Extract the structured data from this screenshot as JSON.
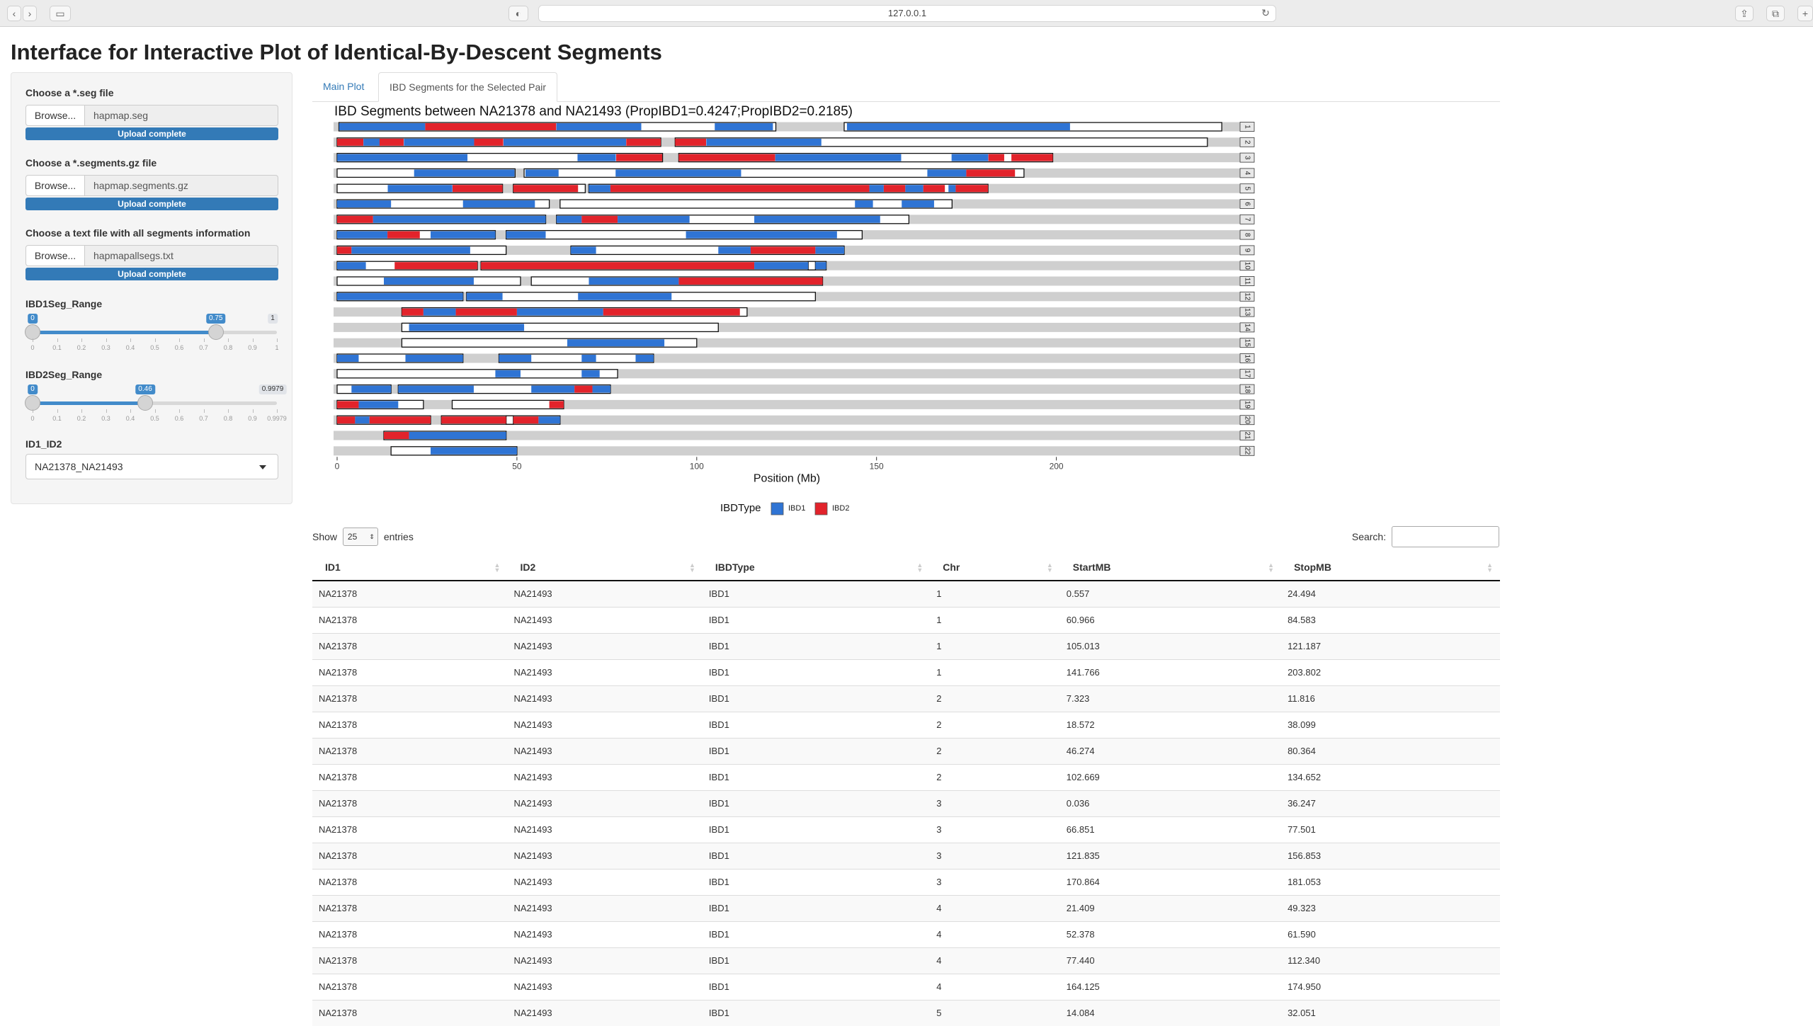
{
  "browser": {
    "url": "127.0.0.1"
  },
  "title": "Interface for Interactive Plot of Identical-By-Descent Segments",
  "sidebar": {
    "file1": {
      "label": "Choose a *.seg file",
      "button": "Browse...",
      "filename": "hapmap.seg",
      "status": "Upload complete"
    },
    "file2": {
      "label": "Choose a *.segments.gz file",
      "button": "Browse...",
      "filename": "hapmap.segments.gz",
      "status": "Upload complete"
    },
    "file3": {
      "label": "Choose a text file with all segments information",
      "button": "Browse...",
      "filename": "hapmapallsegs.txt",
      "status": "Upload complete"
    },
    "slider1": {
      "label": "IBD1Seg_Range",
      "min": 0,
      "max": 1,
      "from": 0,
      "to": 0.75,
      "from_label": "0",
      "to_label": "0.75",
      "max_label": "1",
      "ticks": [
        "0",
        "0.1",
        "0.2",
        "0.3",
        "0.4",
        "0.5",
        "0.6",
        "0.7",
        "0.8",
        "0.9",
        "1"
      ]
    },
    "slider2": {
      "label": "IBD2Seg_Range",
      "min": 0,
      "max": 0.9979,
      "from": 0,
      "to": 0.46,
      "from_label": "0",
      "to_label": "0.46",
      "max_label": "0.9979",
      "ticks": [
        "0",
        "0.1",
        "0.2",
        "0.3",
        "0.4",
        "0.5",
        "0.6",
        "0.7",
        "0.8",
        "0.9",
        "0.9979"
      ]
    },
    "select": {
      "label": "ID1_ID2",
      "value": "NA21378_NA21493"
    }
  },
  "tabs": [
    "Main Plot",
    "IBD Segments for the Selected Pair"
  ],
  "chart_data": {
    "type": "bar",
    "title": "IBD Segments between NA21378 and NA21493 (PropIBD1=0.4247;PropIBD2=0.2185)",
    "xlabel": "Position (Mb)",
    "xlim": [
      0,
      250
    ],
    "xticks": [
      0,
      50,
      100,
      150,
      200
    ],
    "legend": {
      "title": "IBDType",
      "position": "bottom",
      "items": [
        {
          "name": "IBD1",
          "color": "#2f74d4"
        },
        {
          "name": "IBD2",
          "color": "#e2232b"
        }
      ]
    },
    "chromosomes": [
      {
        "chr": "1",
        "length": 246,
        "segments": [
          [
            0.5,
            122,
            "w"
          ],
          [
            0.557,
            24.494,
            "IBD1"
          ],
          [
            24.5,
            60.9,
            "IBD2"
          ],
          [
            60.966,
            84.583,
            "IBD1"
          ],
          [
            105.013,
            121.187,
            "IBD1"
          ],
          [
            141,
            246,
            "w"
          ],
          [
            141.766,
            203.802,
            "IBD1"
          ]
        ]
      },
      {
        "chr": "2",
        "length": 242,
        "segments": [
          [
            0,
            90,
            "w"
          ],
          [
            0,
            7.3,
            "IBD2"
          ],
          [
            7.323,
            11.816,
            "IBD1"
          ],
          [
            11.8,
            18.5,
            "IBD2"
          ],
          [
            18.572,
            38.099,
            "IBD1"
          ],
          [
            38.1,
            46.2,
            "IBD2"
          ],
          [
            46.274,
            80.364,
            "IBD1"
          ],
          [
            80.4,
            90,
            "IBD2"
          ],
          [
            94,
            242,
            "w"
          ],
          [
            94,
            102.6,
            "IBD2"
          ],
          [
            102.669,
            134.652,
            "IBD1"
          ]
        ]
      },
      {
        "chr": "3",
        "length": 199,
        "segments": [
          [
            0,
            90.5,
            "w"
          ],
          [
            0.036,
            36.247,
            "IBD1"
          ],
          [
            66.851,
            77.501,
            "IBD1"
          ],
          [
            77.6,
            90.4,
            "IBD2"
          ],
          [
            95,
            199,
            "w"
          ],
          [
            95,
            121.8,
            "IBD2"
          ],
          [
            121.835,
            156.853,
            "IBD1"
          ],
          [
            170.864,
            181.053,
            "IBD1"
          ],
          [
            181.1,
            185.5,
            "IBD2"
          ],
          [
            187.5,
            199,
            "IBD2"
          ]
        ]
      },
      {
        "chr": "4",
        "length": 191,
        "segments": [
          [
            0,
            49.5,
            "w"
          ],
          [
            21.409,
            49.323,
            "IBD1"
          ],
          [
            52,
            191,
            "w"
          ],
          [
            52.378,
            61.59,
            "IBD1"
          ],
          [
            77.44,
            112.34,
            "IBD1"
          ],
          [
            164.125,
            174.95,
            "IBD1"
          ],
          [
            174.95,
            188.5,
            "IBD2"
          ]
        ]
      },
      {
        "chr": "5",
        "length": 181,
        "segments": [
          [
            0,
            46,
            "w"
          ],
          [
            14.084,
            32.051,
            "IBD1"
          ],
          [
            32.1,
            46,
            "IBD2"
          ],
          [
            49,
            69,
            "w"
          ],
          [
            49,
            67,
            "IBD2"
          ],
          [
            70,
            181,
            "w"
          ],
          [
            70,
            76,
            "IBD1"
          ],
          [
            76,
            148,
            "IBD2"
          ],
          [
            148,
            152,
            "IBD1"
          ],
          [
            152,
            158,
            "IBD2"
          ],
          [
            158,
            163,
            "IBD1"
          ],
          [
            163,
            169,
            "IBD2"
          ],
          [
            170,
            172,
            "IBD1"
          ],
          [
            172,
            181,
            "IBD2"
          ]
        ]
      },
      {
        "chr": "6",
        "length": 171,
        "segments": [
          [
            0,
            59,
            "w"
          ],
          [
            0,
            15,
            "IBD1"
          ],
          [
            35,
            55,
            "IBD1"
          ],
          [
            62,
            171,
            "w"
          ],
          [
            144,
            149,
            "IBD1"
          ],
          [
            157,
            166,
            "IBD1"
          ]
        ]
      },
      {
        "chr": "7",
        "length": 159,
        "segments": [
          [
            0,
            58,
            "w"
          ],
          [
            0,
            10,
            "IBD2"
          ],
          [
            10,
            58,
            "IBD1"
          ],
          [
            61,
            159,
            "w"
          ],
          [
            61,
            68,
            "IBD1"
          ],
          [
            68,
            78,
            "IBD2"
          ],
          [
            78,
            98,
            "IBD1"
          ],
          [
            116,
            151,
            "IBD1"
          ]
        ]
      },
      {
        "chr": "8",
        "length": 146,
        "segments": [
          [
            0,
            44,
            "w"
          ],
          [
            0,
            14,
            "IBD1"
          ],
          [
            14,
            23,
            "IBD2"
          ],
          [
            26,
            44,
            "IBD1"
          ],
          [
            47,
            146,
            "w"
          ],
          [
            47,
            58,
            "IBD1"
          ],
          [
            97,
            139,
            "IBD1"
          ]
        ]
      },
      {
        "chr": "9",
        "length": 141,
        "segments": [
          [
            0,
            47,
            "w"
          ],
          [
            0,
            4,
            "IBD2"
          ],
          [
            4,
            37,
            "IBD1"
          ],
          [
            65,
            141,
            "w"
          ],
          [
            65,
            72,
            "IBD1"
          ],
          [
            106,
            115,
            "IBD1"
          ],
          [
            115,
            133,
            "IBD2"
          ],
          [
            133,
            141,
            "IBD1"
          ]
        ]
      },
      {
        "chr": "10",
        "length": 136,
        "segments": [
          [
            0,
            39,
            "w"
          ],
          [
            0,
            8,
            "IBD1"
          ],
          [
            16,
            39,
            "IBD2"
          ],
          [
            40,
            136,
            "w"
          ],
          [
            40,
            116,
            "IBD2"
          ],
          [
            116,
            131,
            "IBD1"
          ],
          [
            131,
            133,
            "w"
          ],
          [
            133,
            136,
            "IBD1"
          ]
        ]
      },
      {
        "chr": "11",
        "length": 135,
        "segments": [
          [
            0,
            51,
            "w"
          ],
          [
            13,
            38,
            "IBD1"
          ],
          [
            54,
            135,
            "w"
          ],
          [
            70,
            95,
            "IBD1"
          ],
          [
            95,
            135,
            "IBD2"
          ]
        ]
      },
      {
        "chr": "12",
        "length": 133,
        "segments": [
          [
            0,
            35,
            "w"
          ],
          [
            0,
            35,
            "IBD1"
          ],
          [
            36,
            133,
            "w"
          ],
          [
            36,
            46,
            "IBD1"
          ],
          [
            67,
            93,
            "IBD1"
          ]
        ]
      },
      {
        "chr": "13",
        "length": 114,
        "segments": [
          [
            18,
            114,
            "w"
          ],
          [
            18,
            24,
            "IBD2"
          ],
          [
            24,
            33,
            "IBD1"
          ],
          [
            33,
            50,
            "IBD2"
          ],
          [
            50,
            74,
            "IBD1"
          ],
          [
            74,
            112,
            "IBD2"
          ]
        ]
      },
      {
        "chr": "14",
        "length": 106,
        "segments": [
          [
            18,
            106,
            "w"
          ],
          [
            20,
            52,
            "IBD1"
          ]
        ]
      },
      {
        "chr": "15",
        "length": 100,
        "segments": [
          [
            18,
            100,
            "w"
          ],
          [
            64,
            91,
            "IBD1"
          ]
        ]
      },
      {
        "chr": "16",
        "length": 88,
        "segments": [
          [
            0,
            35,
            "w"
          ],
          [
            0,
            6,
            "IBD1"
          ],
          [
            19,
            35,
            "IBD1"
          ],
          [
            45,
            88,
            "w"
          ],
          [
            45,
            54,
            "IBD1"
          ],
          [
            68,
            72,
            "IBD1"
          ],
          [
            83,
            88,
            "IBD1"
          ]
        ]
      },
      {
        "chr": "17",
        "length": 78,
        "segments": [
          [
            0,
            78,
            "w"
          ],
          [
            44,
            51,
            "IBD1"
          ],
          [
            68,
            73,
            "IBD1"
          ]
        ]
      },
      {
        "chr": "18",
        "length": 76,
        "segments": [
          [
            0,
            15,
            "w"
          ],
          [
            4,
            15,
            "IBD1"
          ],
          [
            17,
            76,
            "w"
          ],
          [
            17,
            38,
            "IBD1"
          ],
          [
            54,
            66,
            "IBD1"
          ],
          [
            66,
            71,
            "IBD2"
          ],
          [
            71,
            76,
            "IBD1"
          ]
        ]
      },
      {
        "chr": "19",
        "length": 63,
        "segments": [
          [
            0,
            24,
            "w"
          ],
          [
            0,
            6,
            "IBD2"
          ],
          [
            6,
            17,
            "IBD1"
          ],
          [
            32,
            63,
            "w"
          ],
          [
            59,
            63,
            "IBD2"
          ]
        ]
      },
      {
        "chr": "20",
        "length": 62,
        "segments": [
          [
            0,
            26,
            "w"
          ],
          [
            0,
            5,
            "IBD2"
          ],
          [
            5,
            9,
            "IBD1"
          ],
          [
            9,
            26,
            "IBD2"
          ],
          [
            29,
            62,
            "w"
          ],
          [
            29,
            47,
            "IBD2"
          ],
          [
            47,
            49,
            "w"
          ],
          [
            49,
            56,
            "IBD2"
          ],
          [
            56,
            62,
            "IBD1"
          ]
        ]
      },
      {
        "chr": "21",
        "length": 47,
        "segments": [
          [
            13,
            47,
            "w"
          ],
          [
            13,
            20,
            "IBD2"
          ],
          [
            20,
            47,
            "IBD1"
          ]
        ]
      },
      {
        "chr": "22",
        "length": 50,
        "segments": [
          [
            15,
            50,
            "w"
          ],
          [
            26,
            50,
            "IBD1"
          ]
        ]
      }
    ]
  },
  "datatable": {
    "show_label": "Show",
    "entries_label": "entries",
    "length": "25",
    "search_label": "Search:",
    "columns": [
      "ID1",
      "ID2",
      "IBDType",
      "Chr",
      "StartMB",
      "StopMB"
    ],
    "rows": [
      [
        "NA21378",
        "NA21493",
        "IBD1",
        "1",
        "0.557",
        "24.494"
      ],
      [
        "NA21378",
        "NA21493",
        "IBD1",
        "1",
        "60.966",
        "84.583"
      ],
      [
        "NA21378",
        "NA21493",
        "IBD1",
        "1",
        "105.013",
        "121.187"
      ],
      [
        "NA21378",
        "NA21493",
        "IBD1",
        "1",
        "141.766",
        "203.802"
      ],
      [
        "NA21378",
        "NA21493",
        "IBD1",
        "2",
        "7.323",
        "11.816"
      ],
      [
        "NA21378",
        "NA21493",
        "IBD1",
        "2",
        "18.572",
        "38.099"
      ],
      [
        "NA21378",
        "NA21493",
        "IBD1",
        "2",
        "46.274",
        "80.364"
      ],
      [
        "NA21378",
        "NA21493",
        "IBD1",
        "2",
        "102.669",
        "134.652"
      ],
      [
        "NA21378",
        "NA21493",
        "IBD1",
        "3",
        "0.036",
        "36.247"
      ],
      [
        "NA21378",
        "NA21493",
        "IBD1",
        "3",
        "66.851",
        "77.501"
      ],
      [
        "NA21378",
        "NA21493",
        "IBD1",
        "3",
        "121.835",
        "156.853"
      ],
      [
        "NA21378",
        "NA21493",
        "IBD1",
        "3",
        "170.864",
        "181.053"
      ],
      [
        "NA21378",
        "NA21493",
        "IBD1",
        "4",
        "21.409",
        "49.323"
      ],
      [
        "NA21378",
        "NA21493",
        "IBD1",
        "4",
        "52.378",
        "61.590"
      ],
      [
        "NA21378",
        "NA21493",
        "IBD1",
        "4",
        "77.440",
        "112.340"
      ],
      [
        "NA21378",
        "NA21493",
        "IBD1",
        "4",
        "164.125",
        "174.950"
      ],
      [
        "NA21378",
        "NA21493",
        "IBD1",
        "5",
        "14.084",
        "32.051"
      ]
    ]
  }
}
